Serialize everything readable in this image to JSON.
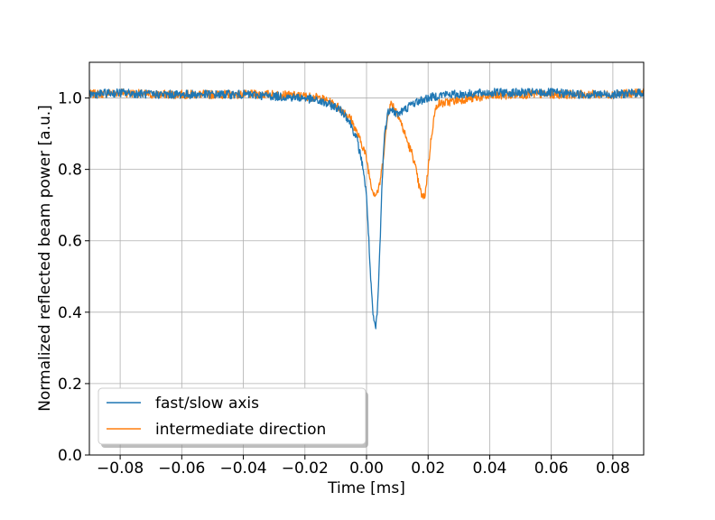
{
  "chart_data": {
    "type": "line",
    "xlabel": "Time [ms]",
    "ylabel": "Normalized reflected beam power [a.u.]",
    "xlim": [
      -0.09,
      0.09
    ],
    "ylim": [
      0.0,
      1.1
    ],
    "x_ticks": [
      -0.08,
      -0.06,
      -0.04,
      -0.02,
      0.0,
      0.02,
      0.04,
      0.06,
      0.08
    ],
    "x_tick_labels": [
      "−0.08",
      "−0.06",
      "−0.04",
      "−0.02",
      "0.00",
      "0.02",
      "0.04",
      "0.06",
      "0.08"
    ],
    "y_ticks": [
      0.0,
      0.2,
      0.4,
      0.6,
      0.8,
      1.0
    ],
    "y_tick_labels": [
      "0.0",
      "0.2",
      "0.4",
      "0.6",
      "0.8",
      "1.0"
    ],
    "grid": true,
    "legend_position": "lower-left",
    "series": [
      {
        "name": "fast/slow axis",
        "color": "#1f77b4",
        "points": [
          [
            -0.09,
            1.01
          ],
          [
            -0.08,
            1.015
          ],
          [
            -0.07,
            1.01
          ],
          [
            -0.06,
            1.01
          ],
          [
            -0.05,
            1.01
          ],
          [
            -0.04,
            1.01
          ],
          [
            -0.03,
            1.005
          ],
          [
            -0.02,
            1.0
          ],
          [
            -0.015,
            0.99
          ],
          [
            -0.01,
            0.975
          ],
          [
            -0.007,
            0.955
          ],
          [
            -0.005,
            0.925
          ],
          [
            -0.003,
            0.88
          ],
          [
            -0.001,
            0.8
          ],
          [
            0.0,
            0.72
          ],
          [
            0.0005,
            0.65
          ],
          [
            0.001,
            0.55
          ],
          [
            0.0015,
            0.47
          ],
          [
            0.002,
            0.4
          ],
          [
            0.0025,
            0.37
          ],
          [
            0.003,
            0.355
          ],
          [
            0.0035,
            0.4
          ],
          [
            0.004,
            0.5
          ],
          [
            0.0045,
            0.62
          ],
          [
            0.005,
            0.75
          ],
          [
            0.0055,
            0.85
          ],
          [
            0.006,
            0.91
          ],
          [
            0.007,
            0.96
          ],
          [
            0.008,
            0.975
          ],
          [
            0.009,
            0.96
          ],
          [
            0.01,
            0.955
          ],
          [
            0.012,
            0.965
          ],
          [
            0.015,
            0.985
          ],
          [
            0.02,
            1.0
          ],
          [
            0.025,
            1.01
          ],
          [
            0.03,
            1.01
          ],
          [
            0.04,
            1.015
          ],
          [
            0.05,
            1.015
          ],
          [
            0.06,
            1.015
          ],
          [
            0.07,
            1.01
          ],
          [
            0.08,
            1.01
          ],
          [
            0.09,
            1.015
          ]
        ]
      },
      {
        "name": "intermediate direction",
        "color": "#ff7f0e",
        "points": [
          [
            -0.09,
            1.01
          ],
          [
            -0.08,
            1.015
          ],
          [
            -0.07,
            1.01
          ],
          [
            -0.06,
            1.01
          ],
          [
            -0.05,
            1.01
          ],
          [
            -0.04,
            1.01
          ],
          [
            -0.03,
            1.01
          ],
          [
            -0.02,
            1.005
          ],
          [
            -0.015,
            1.0
          ],
          [
            -0.01,
            0.98
          ],
          [
            -0.007,
            0.96
          ],
          [
            -0.005,
            0.94
          ],
          [
            -0.003,
            0.9
          ],
          [
            -0.001,
            0.86
          ],
          [
            0.0,
            0.83
          ],
          [
            0.001,
            0.78
          ],
          [
            0.002,
            0.74
          ],
          [
            0.003,
            0.73
          ],
          [
            0.004,
            0.745
          ],
          [
            0.005,
            0.8
          ],
          [
            0.006,
            0.88
          ],
          [
            0.007,
            0.96
          ],
          [
            0.008,
            0.985
          ],
          [
            0.009,
            0.975
          ],
          [
            0.01,
            0.96
          ],
          [
            0.011,
            0.935
          ],
          [
            0.012,
            0.91
          ],
          [
            0.013,
            0.885
          ],
          [
            0.014,
            0.86
          ],
          [
            0.015,
            0.84
          ],
          [
            0.016,
            0.8
          ],
          [
            0.017,
            0.755
          ],
          [
            0.018,
            0.725
          ],
          [
            0.0185,
            0.72
          ],
          [
            0.019,
            0.73
          ],
          [
            0.02,
            0.8
          ],
          [
            0.021,
            0.89
          ],
          [
            0.022,
            0.95
          ],
          [
            0.023,
            0.985
          ],
          [
            0.025,
            0.985
          ],
          [
            0.03,
            0.995
          ],
          [
            0.04,
            1.005
          ],
          [
            0.05,
            1.01
          ],
          [
            0.06,
            1.01
          ],
          [
            0.07,
            1.01
          ],
          [
            0.08,
            1.01
          ],
          [
            0.09,
            1.015
          ]
        ]
      }
    ]
  }
}
